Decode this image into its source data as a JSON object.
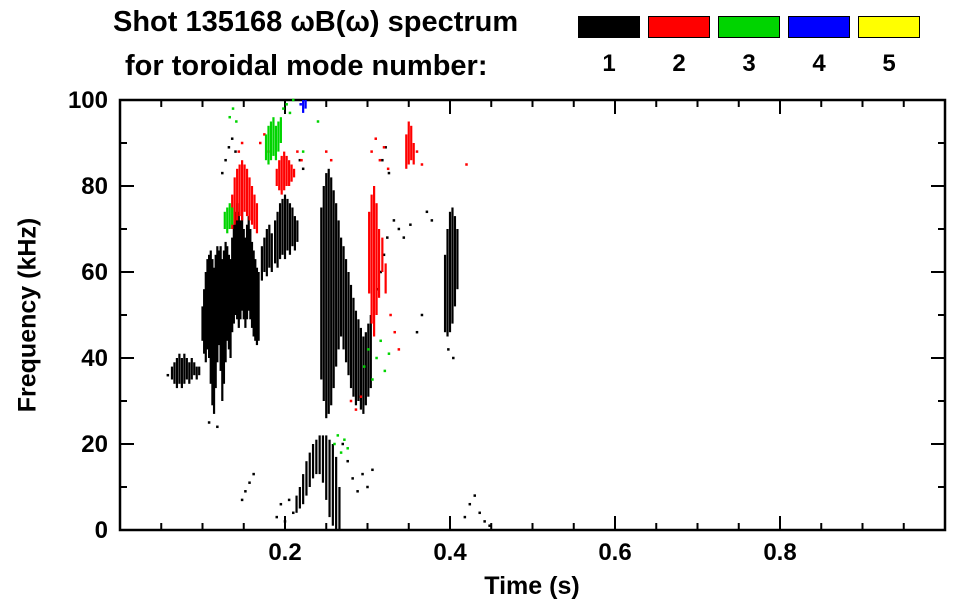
{
  "chart_data": {
    "type": "scatter",
    "title": "Shot 135168 ωB(ω) spectrum",
    "subtitle": "for toroidal mode number:",
    "xlabel": "Time (s)",
    "ylabel": "Frequency (kHz)",
    "xlim": [
      0,
      1.0
    ],
    "ylim": [
      0,
      100
    ],
    "grid": false,
    "x_ticks": [
      {
        "value": 0.2,
        "label": "0.2"
      },
      {
        "value": 0.4,
        "label": "0.4"
      },
      {
        "value": 0.6,
        "label": "0.6"
      },
      {
        "value": 0.8,
        "label": "0.8"
      }
    ],
    "x_minor_step": 0.05,
    "y_ticks": [
      {
        "value": 0,
        "label": "0"
      },
      {
        "value": 20,
        "label": "20"
      },
      {
        "value": 40,
        "label": "40"
      },
      {
        "value": 60,
        "label": "60"
      },
      {
        "value": 80,
        "label": "80"
      },
      {
        "value": 100,
        "label": "100"
      }
    ],
    "y_minor_step": 10,
    "legend": [
      {
        "label": "1",
        "color": "#000000"
      },
      {
        "label": "2",
        "color": "#ff0000"
      },
      {
        "label": "3",
        "color": "#00d400"
      },
      {
        "label": "4",
        "color": "#0000ff"
      },
      {
        "label": "5",
        "color": "#ffff00"
      }
    ],
    "series": [
      {
        "name": "n=1",
        "color": "#000000",
        "segments": [
          [
            0.063,
            35,
            38
          ],
          [
            0.066,
            34,
            39
          ],
          [
            0.069,
            33,
            40
          ],
          [
            0.072,
            34,
            41
          ],
          [
            0.075,
            33,
            40
          ],
          [
            0.078,
            34,
            41
          ],
          [
            0.081,
            35,
            40
          ],
          [
            0.084,
            34,
            39
          ],
          [
            0.087,
            35,
            40
          ],
          [
            0.09,
            36,
            39
          ],
          [
            0.093,
            35,
            38
          ],
          [
            0.096,
            36,
            38
          ],
          [
            0.1,
            44,
            52
          ],
          [
            0.102,
            41,
            56
          ],
          [
            0.104,
            39,
            60
          ],
          [
            0.106,
            42,
            63
          ],
          [
            0.108,
            40,
            64
          ],
          [
            0.11,
            34,
            65
          ],
          [
            0.112,
            29,
            63
          ],
          [
            0.114,
            27,
            61
          ],
          [
            0.116,
            33,
            64
          ],
          [
            0.118,
            39,
            66
          ],
          [
            0.12,
            43,
            65
          ],
          [
            0.122,
            37,
            66
          ],
          [
            0.124,
            30,
            63
          ],
          [
            0.126,
            34,
            65
          ],
          [
            0.128,
            39,
            67
          ],
          [
            0.13,
            44,
            66
          ],
          [
            0.132,
            42,
            64
          ],
          [
            0.134,
            40,
            63
          ],
          [
            0.136,
            46,
            68
          ],
          [
            0.138,
            48,
            71
          ],
          [
            0.14,
            50,
            74
          ],
          [
            0.142,
            49,
            76
          ],
          [
            0.144,
            47,
            74
          ],
          [
            0.146,
            49,
            72
          ],
          [
            0.148,
            51,
            74
          ],
          [
            0.15,
            49,
            70
          ],
          [
            0.152,
            47,
            68
          ],
          [
            0.154,
            49,
            71
          ],
          [
            0.156,
            51,
            73
          ],
          [
            0.158,
            49,
            70
          ],
          [
            0.16,
            47,
            67
          ],
          [
            0.162,
            45,
            65
          ],
          [
            0.164,
            44,
            63
          ],
          [
            0.166,
            43,
            61
          ],
          [
            0.168,
            44,
            60
          ],
          [
            0.172,
            58,
            66
          ],
          [
            0.175,
            60,
            68
          ],
          [
            0.178,
            59,
            70
          ],
          [
            0.181,
            61,
            71
          ],
          [
            0.184,
            60,
            69
          ],
          [
            0.188,
            62,
            72
          ],
          [
            0.191,
            61,
            74
          ],
          [
            0.194,
            63,
            76
          ],
          [
            0.197,
            64,
            77
          ],
          [
            0.2,
            63,
            78
          ],
          [
            0.203,
            65,
            77
          ],
          [
            0.206,
            64,
            76
          ],
          [
            0.209,
            66,
            75
          ],
          [
            0.212,
            65,
            73
          ],
          [
            0.215,
            67,
            72
          ],
          [
            0.244,
            35,
            75
          ],
          [
            0.247,
            30,
            80
          ],
          [
            0.25,
            26,
            83
          ],
          [
            0.253,
            27,
            84
          ],
          [
            0.256,
            29,
            82
          ],
          [
            0.259,
            33,
            79
          ],
          [
            0.262,
            38,
            76
          ],
          [
            0.265,
            42,
            72
          ],
          [
            0.268,
            45,
            68
          ],
          [
            0.271,
            42,
            66
          ],
          [
            0.274,
            39,
            63
          ],
          [
            0.277,
            36,
            60
          ],
          [
            0.28,
            33,
            57
          ],
          [
            0.283,
            31,
            54
          ],
          [
            0.286,
            29,
            51
          ],
          [
            0.289,
            30,
            49
          ],
          [
            0.292,
            28,
            47
          ],
          [
            0.295,
            27,
            45
          ],
          [
            0.298,
            29,
            46
          ],
          [
            0.301,
            31,
            48
          ],
          [
            0.304,
            33,
            50
          ],
          [
            0.214,
            4,
            8
          ],
          [
            0.218,
            5,
            10
          ],
          [
            0.222,
            6,
            13
          ],
          [
            0.226,
            8,
            16
          ],
          [
            0.23,
            10,
            18
          ],
          [
            0.234,
            12,
            20
          ],
          [
            0.238,
            13,
            21
          ],
          [
            0.242,
            13,
            22
          ],
          [
            0.246,
            11,
            22
          ],
          [
            0.25,
            7,
            22
          ],
          [
            0.254,
            3,
            21
          ],
          [
            0.258,
            1,
            20
          ],
          [
            0.262,
            0,
            17
          ],
          [
            0.266,
            0,
            10
          ],
          [
            0.394,
            46,
            64
          ],
          [
            0.397,
            45,
            70
          ],
          [
            0.4,
            46,
            74
          ],
          [
            0.403,
            48,
            75
          ],
          [
            0.406,
            52,
            73
          ],
          [
            0.409,
            56,
            70
          ]
        ],
        "points": [
          [
            0.058,
            36
          ],
          [
            0.108,
            25
          ],
          [
            0.118,
            24
          ],
          [
            0.124,
            83
          ],
          [
            0.128,
            86
          ],
          [
            0.132,
            89
          ],
          [
            0.136,
            91
          ],
          [
            0.14,
            88
          ],
          [
            0.148,
            7
          ],
          [
            0.152,
            9
          ],
          [
            0.157,
            11
          ],
          [
            0.162,
            13
          ],
          [
            0.19,
            3
          ],
          [
            0.195,
            6
          ],
          [
            0.2,
            2
          ],
          [
            0.205,
            7
          ],
          [
            0.21,
            4
          ],
          [
            0.218,
            86
          ],
          [
            0.222,
            84
          ],
          [
            0.27,
            20
          ],
          [
            0.276,
            16
          ],
          [
            0.282,
            12
          ],
          [
            0.288,
            9
          ],
          [
            0.294,
            13
          ],
          [
            0.3,
            10
          ],
          [
            0.306,
            14
          ],
          [
            0.312,
            56
          ],
          [
            0.316,
            60
          ],
          [
            0.32,
            64
          ],
          [
            0.324,
            68
          ],
          [
            0.318,
            86
          ],
          [
            0.322,
            89
          ],
          [
            0.326,
            83
          ],
          [
            0.332,
            72
          ],
          [
            0.338,
            70
          ],
          [
            0.344,
            68
          ],
          [
            0.352,
            71
          ],
          [
            0.372,
            74
          ],
          [
            0.378,
            72
          ],
          [
            0.36,
            46
          ],
          [
            0.366,
            50
          ],
          [
            0.398,
            42
          ],
          [
            0.404,
            40
          ],
          [
            0.418,
            3
          ],
          [
            0.424,
            6
          ],
          [
            0.43,
            8
          ],
          [
            0.436,
            4
          ],
          [
            0.442,
            2
          ],
          [
            0.448,
            1
          ]
        ]
      },
      {
        "name": "n=2",
        "color": "#ff0000",
        "segments": [
          [
            0.136,
            70,
            78
          ],
          [
            0.139,
            71,
            82
          ],
          [
            0.142,
            72,
            84
          ],
          [
            0.145,
            73,
            85
          ],
          [
            0.148,
            72,
            86
          ],
          [
            0.151,
            74,
            85
          ],
          [
            0.154,
            73,
            84
          ],
          [
            0.157,
            72,
            82
          ],
          [
            0.16,
            71,
            80
          ],
          [
            0.163,
            70,
            78
          ],
          [
            0.166,
            69,
            76
          ],
          [
            0.19,
            80,
            84
          ],
          [
            0.193,
            79,
            86
          ],
          [
            0.196,
            78,
            87
          ],
          [
            0.199,
            79,
            88
          ],
          [
            0.202,
            80,
            87
          ],
          [
            0.205,
            80,
            86
          ],
          [
            0.208,
            81,
            85
          ],
          [
            0.211,
            82,
            84
          ],
          [
            0.302,
            55,
            74
          ],
          [
            0.305,
            48,
            78
          ],
          [
            0.308,
            45,
            80
          ],
          [
            0.311,
            50,
            76
          ],
          [
            0.314,
            54,
            70
          ],
          [
            0.318,
            60,
            68
          ],
          [
            0.322,
            55,
            62
          ],
          [
            0.347,
            84,
            92
          ],
          [
            0.35,
            85,
            95
          ],
          [
            0.353,
            86,
            94
          ],
          [
            0.356,
            85,
            90
          ]
        ],
        "points": [
          [
            0.144,
            88
          ],
          [
            0.148,
            90
          ],
          [
            0.17,
            90
          ],
          [
            0.175,
            92
          ],
          [
            0.18,
            88
          ],
          [
            0.215,
            88
          ],
          [
            0.22,
            86
          ],
          [
            0.25,
            88
          ],
          [
            0.256,
            86
          ],
          [
            0.28,
            30
          ],
          [
            0.286,
            28
          ],
          [
            0.292,
            31
          ],
          [
            0.305,
            88
          ],
          [
            0.31,
            91
          ],
          [
            0.315,
            86
          ],
          [
            0.32,
            89
          ],
          [
            0.325,
            84
          ],
          [
            0.328,
            50
          ],
          [
            0.333,
            46
          ],
          [
            0.338,
            42
          ],
          [
            0.36,
            88
          ],
          [
            0.366,
            85
          ],
          [
            0.42,
            85
          ]
        ]
      },
      {
        "name": "n=3",
        "color": "#00d400",
        "segments": [
          [
            0.177,
            86,
            92
          ],
          [
            0.18,
            85,
            94
          ],
          [
            0.183,
            86,
            95
          ],
          [
            0.186,
            87,
            96
          ],
          [
            0.189,
            86,
            94
          ],
          [
            0.192,
            88,
            95
          ],
          [
            0.195,
            90,
            96
          ],
          [
            0.127,
            70,
            74
          ],
          [
            0.13,
            69,
            75
          ],
          [
            0.133,
            70,
            76
          ],
          [
            0.136,
            71,
            75
          ]
        ],
        "points": [
          [
            0.133,
            96
          ],
          [
            0.137,
            98
          ],
          [
            0.141,
            95
          ],
          [
            0.198,
            98
          ],
          [
            0.202,
            99
          ],
          [
            0.206,
            97
          ],
          [
            0.21,
            100
          ],
          [
            0.222,
            88
          ],
          [
            0.24,
            95
          ],
          [
            0.26,
            20
          ],
          [
            0.264,
            22
          ],
          [
            0.268,
            18
          ],
          [
            0.272,
            21
          ],
          [
            0.276,
            19
          ],
          [
            0.296,
            38
          ],
          [
            0.301,
            42
          ],
          [
            0.306,
            35
          ],
          [
            0.311,
            40
          ],
          [
            0.316,
            44
          ],
          [
            0.321,
            37
          ],
          [
            0.326,
            41
          ]
        ]
      },
      {
        "name": "n=4",
        "color": "#0000ff",
        "segments": [
          [
            0.222,
            97,
            100
          ],
          [
            0.225,
            98,
            100
          ]
        ],
        "points": [
          [
            0.219,
            99
          ]
        ]
      },
      {
        "name": "n=5",
        "color": "#ffff00",
        "segments": [],
        "points": []
      }
    ]
  }
}
